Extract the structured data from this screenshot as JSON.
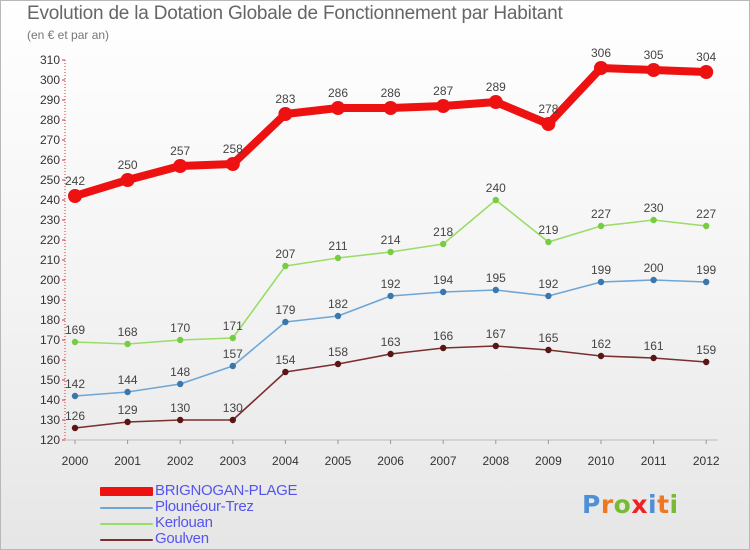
{
  "title": "Evolution de la Dotation Globale de Fonctionnement par Habitant",
  "subtitle": "(en € et par an)",
  "chart_data": {
    "type": "line",
    "title": "Evolution de la Dotation Globale de Fonctionnement par Habitant",
    "subtitle": "(en € et par an)",
    "xlabel": "",
    "ylabel": "",
    "x": [
      "2000",
      "2001",
      "2002",
      "2003",
      "2004",
      "2005",
      "2006",
      "2007",
      "2008",
      "2009",
      "2010",
      "2011",
      "2012"
    ],
    "ylim": [
      120,
      310
    ],
    "ytick_step": 10,
    "y_ticks": [
      "120",
      "130",
      "140",
      "150",
      "160",
      "170",
      "180",
      "190",
      "200",
      "210",
      "220",
      "230",
      "240",
      "250",
      "260",
      "270",
      "280",
      "290",
      "300",
      "310"
    ],
    "grid": false,
    "legend_position": "bottom-left",
    "series": [
      {
        "name": "BRIGNOGAN-PLAGE",
        "color": "#ee1111",
        "marker": "#ee1111",
        "values": [
          242,
          250,
          257,
          258,
          283,
          286,
          286,
          287,
          289,
          278,
          306,
          305,
          304
        ]
      },
      {
        "name": "Plounéour-Trez",
        "color": "#6ea6d6",
        "marker": "#3a77ad",
        "values": [
          142,
          144,
          148,
          157,
          179,
          182,
          192,
          194,
          195,
          192,
          199,
          200,
          199
        ]
      },
      {
        "name": "Kerlouan",
        "color": "#99dd66",
        "marker": "#77cc44",
        "values": [
          169,
          168,
          170,
          171,
          207,
          211,
          214,
          218,
          240,
          219,
          227,
          230,
          227
        ]
      },
      {
        "name": "Goulven",
        "color": "#7a2e2e",
        "marker": "#5a1515",
        "values": [
          126,
          129,
          130,
          130,
          154,
          158,
          163,
          166,
          167,
          165,
          162,
          161,
          159
        ]
      }
    ]
  },
  "legend": [
    {
      "label": "BRIGNOGAN-PLAGE",
      "color": "#ee1111",
      "text_color": "#5555ee"
    },
    {
      "label": "Plounéour-Trez",
      "color": "#6ea6d6",
      "text_color": "#5555ee"
    },
    {
      "label": "Kerlouan",
      "color": "#99dd66",
      "text_color": "#5555ee"
    },
    {
      "label": "Goulven",
      "color": "#7a2e2e",
      "text_color": "#5555ee"
    }
  ],
  "logo": {
    "letters": [
      "P",
      "r",
      "o",
      "x",
      "i",
      "t",
      "i"
    ],
    "colors": [
      "#4f8fd6",
      "#ee7722",
      "#77bb33",
      "#ee2222",
      "#4f8fd6",
      "#ee7722",
      "#77bb33"
    ]
  }
}
